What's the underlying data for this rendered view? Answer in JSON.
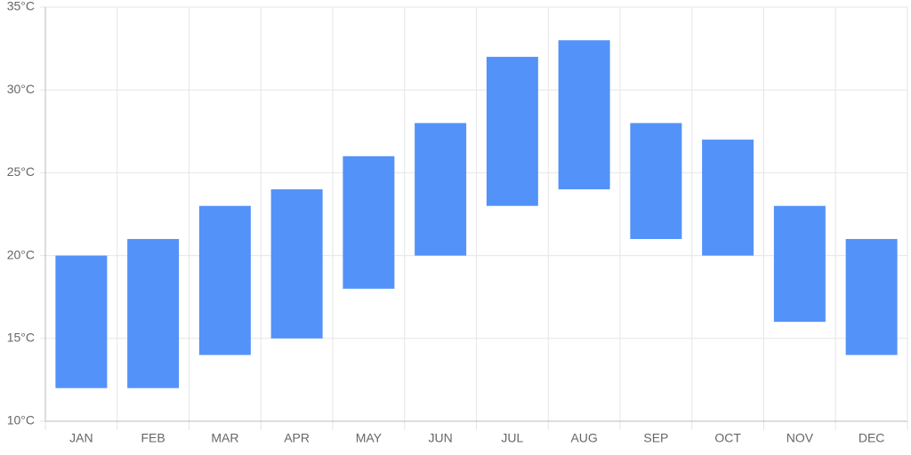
{
  "chart_data": {
    "type": "bar",
    "categories": [
      "JAN",
      "FEB",
      "MAR",
      "APR",
      "MAY",
      "JUN",
      "JUL",
      "AUG",
      "SEP",
      "OCT",
      "NOV",
      "DEC"
    ],
    "values": [
      [
        12,
        20
      ],
      [
        12,
        21
      ],
      [
        14,
        23
      ],
      [
        15,
        24
      ],
      [
        18,
        26
      ],
      [
        20,
        28
      ],
      [
        23,
        32
      ],
      [
        24,
        33
      ],
      [
        21,
        28
      ],
      [
        20,
        27
      ],
      [
        16,
        23
      ],
      [
        14,
        21
      ]
    ],
    "color": "#5392f8",
    "ylim": [
      10,
      35
    ],
    "yticks": [
      {
        "value": 10,
        "label": "10°C"
      },
      {
        "value": 15,
        "label": "15°C"
      },
      {
        "value": 20,
        "label": "20°C"
      },
      {
        "value": 25,
        "label": "25°C"
      },
      {
        "value": 30,
        "label": "30°C"
      },
      {
        "value": 35,
        "label": "35°C"
      }
    ],
    "grid": true
  }
}
